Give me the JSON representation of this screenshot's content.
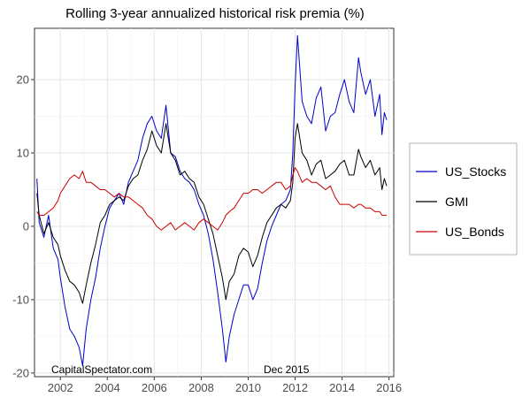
{
  "chart_data": {
    "type": "line",
    "title": "Rolling 3-year annualized historical risk premia (%)",
    "xlabel": "",
    "ylabel": "",
    "xlim": [
      2000.9,
      2016.2
    ],
    "ylim": [
      -20.5,
      27
    ],
    "x_ticks": [
      "2002",
      "2004",
      "2006",
      "2008",
      "2010",
      "2012",
      "2014",
      "2016"
    ],
    "x_tick_values": [
      2002,
      2004,
      2006,
      2008,
      2010,
      2012,
      2014,
      2016
    ],
    "y_ticks": [
      "-20",
      "-10",
      "0",
      "10",
      "20"
    ],
    "y_tick_values": [
      -20,
      -10,
      0,
      10,
      20
    ],
    "grid": true,
    "legend_position": "right",
    "annotations": {
      "source": "CapitalSpectator.com",
      "date": "Dec 2015"
    },
    "series": [
      {
        "name": "US_Stocks",
        "color": "#0000cc",
        "x": [
          2001.0,
          2001.1,
          2001.3,
          2001.5,
          2001.7,
          2001.9,
          2002.0,
          2002.2,
          2002.4,
          2002.6,
          2002.8,
          2002.95,
          2003.1,
          2003.3,
          2003.5,
          2003.7,
          2003.9,
          2004.1,
          2004.3,
          2004.5,
          2004.7,
          2004.9,
          2005.1,
          2005.3,
          2005.5,
          2005.7,
          2005.9,
          2006.1,
          2006.3,
          2006.5,
          2006.7,
          2006.9,
          2007.1,
          2007.3,
          2007.5,
          2007.7,
          2007.9,
          2008.1,
          2008.3,
          2008.5,
          2008.7,
          2008.9,
          2009.05,
          2009.2,
          2009.4,
          2009.6,
          2009.8,
          2010.0,
          2010.2,
          2010.4,
          2010.6,
          2010.8,
          2011.0,
          2011.2,
          2011.4,
          2011.6,
          2011.8,
          2011.9,
          2012.0,
          2012.1,
          2012.3,
          2012.5,
          2012.7,
          2012.9,
          2013.1,
          2013.3,
          2013.5,
          2013.7,
          2013.9,
          2014.1,
          2014.3,
          2014.5,
          2014.7,
          2014.8,
          2015.0,
          2015.2,
          2015.4,
          2015.6,
          2015.7,
          2015.8,
          2015.9
        ],
        "values": [
          6.5,
          0.5,
          -1.5,
          1.5,
          -3.0,
          -4.5,
          -7.0,
          -11.0,
          -14.0,
          -15.0,
          -16.5,
          -19.0,
          -14.0,
          -10.0,
          -7.0,
          -3.0,
          0.0,
          2.5,
          3.5,
          4.5,
          3.0,
          6.0,
          7.5,
          9.0,
          12.0,
          14.0,
          15.0,
          13.0,
          12.0,
          16.5,
          10.0,
          9.5,
          7.5,
          6.5,
          6.0,
          5.0,
          3.0,
          1.5,
          -1.0,
          -4.5,
          -9.0,
          -14.0,
          -18.5,
          -15.0,
          -12.0,
          -10.0,
          -8.0,
          -8.0,
          -10.0,
          -8.5,
          -5.0,
          -2.0,
          0.0,
          1.5,
          3.0,
          3.5,
          5.0,
          10.0,
          19.0,
          26.0,
          17.0,
          15.0,
          14.0,
          17.5,
          19.0,
          13.0,
          15.0,
          15.5,
          18.0,
          20.0,
          17.0,
          15.5,
          23.0,
          21.0,
          18.0,
          20.0,
          15.0,
          18.0,
          12.5,
          15.5,
          14.5
        ]
      },
      {
        "name": "GMI",
        "color": "#000000",
        "x": [
          2001.0,
          2001.1,
          2001.3,
          2001.5,
          2001.7,
          2001.9,
          2002.0,
          2002.2,
          2002.4,
          2002.6,
          2002.8,
          2002.95,
          2003.1,
          2003.3,
          2003.5,
          2003.7,
          2003.9,
          2004.1,
          2004.3,
          2004.5,
          2004.7,
          2004.9,
          2005.1,
          2005.3,
          2005.5,
          2005.7,
          2005.9,
          2006.1,
          2006.3,
          2006.5,
          2006.7,
          2006.9,
          2007.1,
          2007.3,
          2007.5,
          2007.7,
          2007.9,
          2008.1,
          2008.3,
          2008.5,
          2008.7,
          2008.9,
          2009.05,
          2009.2,
          2009.4,
          2009.6,
          2009.8,
          2010.0,
          2010.2,
          2010.4,
          2010.6,
          2010.8,
          2011.0,
          2011.2,
          2011.4,
          2011.6,
          2011.8,
          2011.9,
          2012.0,
          2012.1,
          2012.3,
          2012.5,
          2012.7,
          2012.9,
          2013.1,
          2013.3,
          2013.5,
          2013.7,
          2013.9,
          2014.1,
          2014.3,
          2014.5,
          2014.7,
          2014.8,
          2015.0,
          2015.2,
          2015.4,
          2015.6,
          2015.7,
          2015.8,
          2015.9
        ],
        "values": [
          4.5,
          1.5,
          -1.0,
          0.5,
          -1.5,
          -2.5,
          -4.0,
          -6.0,
          -7.5,
          -8.0,
          -9.0,
          -10.5,
          -8.0,
          -5.0,
          -2.5,
          0.5,
          1.5,
          3.0,
          3.5,
          4.0,
          3.5,
          5.5,
          6.5,
          7.0,
          9.0,
          10.5,
          13.0,
          11.0,
          10.0,
          14.0,
          10.0,
          9.0,
          7.0,
          7.5,
          6.5,
          6.0,
          4.0,
          3.0,
          1.0,
          -1.0,
          -4.0,
          -7.0,
          -10.0,
          -7.5,
          -6.5,
          -4.0,
          -3.0,
          -3.5,
          -5.5,
          -4.0,
          -1.5,
          0.5,
          1.5,
          2.5,
          3.0,
          2.5,
          3.5,
          6.0,
          12.0,
          14.0,
          10.0,
          9.0,
          7.0,
          8.5,
          9.0,
          6.5,
          7.0,
          7.5,
          8.5,
          9.0,
          7.0,
          7.0,
          10.5,
          9.5,
          8.0,
          9.0,
          7.0,
          8.0,
          5.0,
          6.5,
          5.5
        ]
      },
      {
        "name": "US_Bonds",
        "color": "#cc0000",
        "x": [
          2001.0,
          2001.1,
          2001.3,
          2001.5,
          2001.7,
          2001.9,
          2002.0,
          2002.2,
          2002.4,
          2002.6,
          2002.8,
          2002.95,
          2003.1,
          2003.3,
          2003.5,
          2003.7,
          2003.9,
          2004.1,
          2004.3,
          2004.5,
          2004.7,
          2004.9,
          2005.1,
          2005.3,
          2005.5,
          2005.7,
          2005.9,
          2006.1,
          2006.3,
          2006.5,
          2006.7,
          2006.9,
          2007.1,
          2007.3,
          2007.5,
          2007.7,
          2007.9,
          2008.1,
          2008.3,
          2008.5,
          2008.7,
          2008.9,
          2009.05,
          2009.2,
          2009.4,
          2009.6,
          2009.8,
          2010.0,
          2010.2,
          2010.4,
          2010.6,
          2010.8,
          2011.0,
          2011.2,
          2011.4,
          2011.6,
          2011.8,
          2011.9,
          2012.0,
          2012.1,
          2012.3,
          2012.5,
          2012.7,
          2012.9,
          2013.1,
          2013.3,
          2013.5,
          2013.7,
          2013.9,
          2014.1,
          2014.3,
          2014.5,
          2014.7,
          2014.8,
          2015.0,
          2015.2,
          2015.4,
          2015.6,
          2015.7,
          2015.8,
          2015.9
        ],
        "values": [
          2.0,
          1.5,
          1.5,
          2.0,
          2.5,
          3.5,
          4.5,
          5.5,
          6.5,
          7.0,
          6.5,
          7.5,
          6.0,
          6.0,
          5.5,
          5.0,
          5.0,
          4.5,
          4.0,
          4.5,
          4.0,
          4.0,
          3.5,
          3.0,
          2.5,
          1.5,
          1.0,
          0.0,
          -0.5,
          0.0,
          0.5,
          -0.5,
          0.0,
          0.5,
          0.0,
          -0.5,
          0.5,
          1.0,
          0.5,
          0.0,
          -0.5,
          0.5,
          1.5,
          2.0,
          2.5,
          3.5,
          4.5,
          4.5,
          5.0,
          5.0,
          4.5,
          5.0,
          5.5,
          6.0,
          6.0,
          5.0,
          5.5,
          7.0,
          8.0,
          7.5,
          6.0,
          6.5,
          6.0,
          6.0,
          5.5,
          5.0,
          5.5,
          4.0,
          3.0,
          3.0,
          3.0,
          2.5,
          3.0,
          3.0,
          2.5,
          2.5,
          2.0,
          2.0,
          1.5,
          1.5,
          1.5
        ]
      }
    ]
  }
}
